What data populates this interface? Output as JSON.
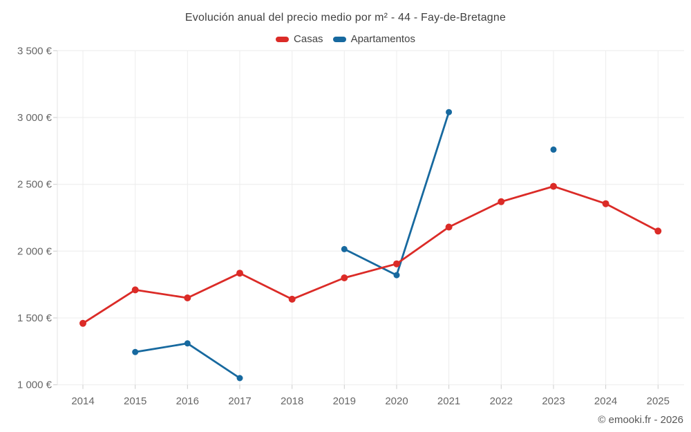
{
  "header": {
    "title": "Evolución anual del precio medio por m² - 44 - Fay-de-Bretagne"
  },
  "legend": {
    "items": [
      {
        "label": "Casas",
        "color": "#db2b27"
      },
      {
        "label": "Apartamentos",
        "color": "#17699f"
      }
    ]
  },
  "footer": {
    "credit": "© emooki.fr - 2026"
  },
  "chart_data": {
    "type": "line",
    "title": "Evolución anual del precio medio por m² - 44 - Fay-de-Bretagne",
    "categories": [
      "2014",
      "2015",
      "2016",
      "2017",
      "2018",
      "2019",
      "2020",
      "2021",
      "2022",
      "2023",
      "2024",
      "2025"
    ],
    "series": [
      {
        "name": "Casas",
        "color": "#db2b27",
        "marker_radius": 5,
        "values": [
          1460,
          1710,
          1650,
          1835,
          1640,
          1800,
          1905,
          2180,
          2370,
          2485,
          2355,
          2150
        ]
      },
      {
        "name": "Apartamentos",
        "color": "#17699f",
        "marker_radius": 4.5,
        "values": [
          null,
          1245,
          1310,
          1050,
          null,
          2015,
          1820,
          3040,
          null,
          2760,
          null,
          null
        ]
      }
    ],
    "ylim": [
      1000,
      3500
    ],
    "yticks": [
      1000,
      1500,
      2000,
      2500,
      3000,
      3500
    ],
    "ytick_labels": [
      "1 000 €",
      "1 500 €",
      "2 000 €",
      "2 500 €",
      "3 000 €",
      "3 500 €"
    ],
    "currency": "€",
    "grid": true,
    "legend_position": "top",
    "xlabel": "",
    "ylabel": ""
  }
}
